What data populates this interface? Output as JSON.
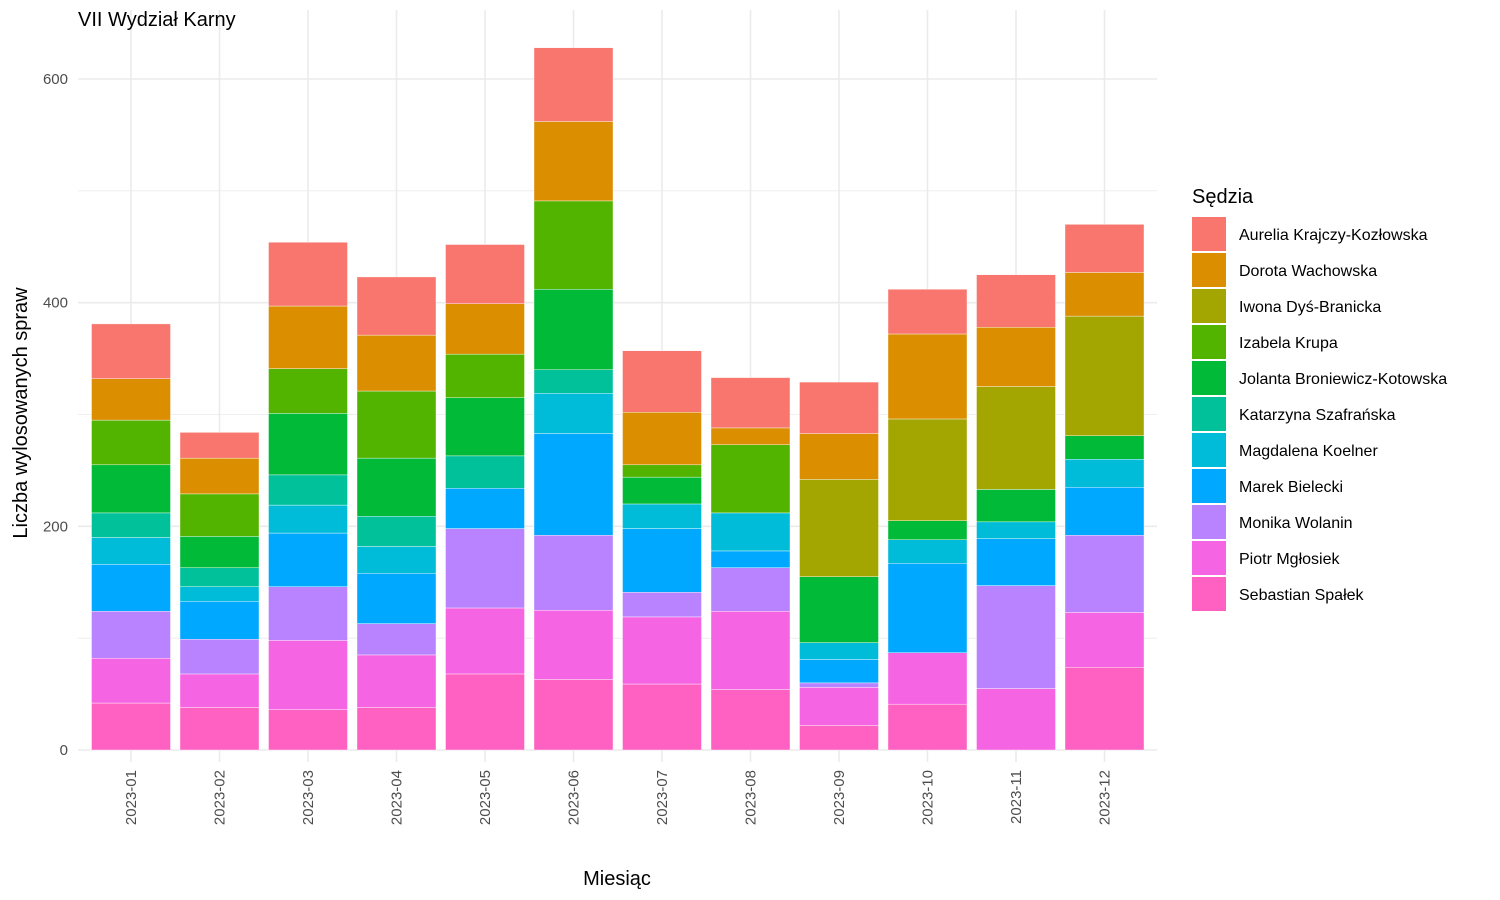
{
  "chart_data": {
    "type": "bar",
    "stacked": true,
    "title": "VII Wydział Karny",
    "xlabel": "Miesiąc",
    "ylabel": "Liczba wylosowanych spraw",
    "ylim": [
      0,
      630
    ],
    "y_ticks": [
      0,
      200,
      400,
      600
    ],
    "grid": true,
    "legend_title": "Sędzia",
    "legend_position": "right",
    "categories": [
      "2023-01",
      "2023-02",
      "2023-03",
      "2023-04",
      "2023-05",
      "2023-06",
      "2023-07",
      "2023-08",
      "2023-09",
      "2023-10",
      "2023-11",
      "2023-12"
    ],
    "series": [
      {
        "name": "Sebastian Spałek",
        "color": "#FF61C3",
        "values": [
          42,
          38,
          36,
          38,
          68,
          63,
          59,
          54,
          22,
          41,
          0,
          74
        ]
      },
      {
        "name": "Piotr Mgłosiek",
        "color": "#F564E3",
        "values": [
          40,
          30,
          62,
          47,
          59,
          62,
          60,
          70,
          34,
          46,
          55,
          49
        ]
      },
      {
        "name": "Monika Wolanin",
        "color": "#B983FF",
        "values": [
          42,
          31,
          48,
          28,
          71,
          67,
          22,
          39,
          4,
          0,
          92,
          69
        ]
      },
      {
        "name": "Marek Bielecki",
        "color": "#00A9FF",
        "values": [
          42,
          34,
          48,
          45,
          36,
          91,
          57,
          15,
          21,
          80,
          42,
          43
        ]
      },
      {
        "name": "Magdalena Koelner",
        "color": "#00BCD8",
        "values": [
          24,
          13,
          25,
          24,
          0,
          36,
          22,
          34,
          15,
          21,
          15,
          25
        ]
      },
      {
        "name": "Katarzyna Szafrańska",
        "color": "#00C19A",
        "values": [
          22,
          17,
          27,
          27,
          29,
          21,
          0,
          0,
          0,
          0,
          0,
          0
        ]
      },
      {
        "name": "Jolanta Broniewicz-Kotowska",
        "color": "#00BA38",
        "values": [
          43,
          28,
          55,
          52,
          52,
          72,
          24,
          0,
          59,
          17,
          29,
          21
        ]
      },
      {
        "name": "Izabela Krupa",
        "color": "#53B400",
        "values": [
          40,
          38,
          40,
          60,
          39,
          79,
          11,
          61,
          0,
          0,
          0,
          0
        ]
      },
      {
        "name": "Iwona Dyś-Branicka",
        "color": "#A3A500",
        "values": [
          0,
          0,
          0,
          0,
          0,
          0,
          0,
          0,
          87,
          91,
          92,
          107
        ]
      },
      {
        "name": "Dorota Wachowska",
        "color": "#DB8E00",
        "values": [
          37,
          32,
          56,
          50,
          45,
          71,
          47,
          15,
          41,
          76,
          53,
          39
        ]
      },
      {
        "name": "Aurelia Krajczy-Kozłowska",
        "color": "#F8766D",
        "values": [
          49,
          23,
          57,
          52,
          53,
          66,
          55,
          45,
          46,
          40,
          47,
          43
        ]
      }
    ],
    "legend_order": [
      "Aurelia Krajczy-Kozłowska",
      "Dorota Wachowska",
      "Iwona Dyś-Branicka",
      "Izabela Krupa",
      "Jolanta Broniewicz-Kotowska",
      "Katarzyna Szafrańska",
      "Magdalena Koelner",
      "Marek Bielecki",
      "Monika Wolanin",
      "Piotr Mgłosiek",
      "Sebastian Spałek"
    ]
  }
}
